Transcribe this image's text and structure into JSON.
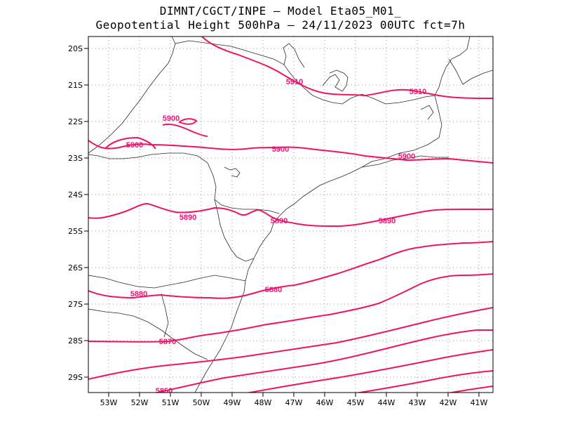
{
  "header": {
    "line1": "DIMNT/CGCT/INPE –  Model Eta05_M01_",
    "line2": "Geopotential Height 500hPa –  24/11/2023 00UTC fct=7h"
  },
  "map": {
    "lon_labels": [
      "53W",
      "52W",
      "51W",
      "50W",
      "49W",
      "48W",
      "47W",
      "46W",
      "45W",
      "44W",
      "43W",
      "42W",
      "41W"
    ],
    "lat_labels": [
      "20S",
      "21S",
      "22S",
      "23S",
      "24S",
      "25S",
      "26S",
      "27S",
      "28S",
      "29S"
    ],
    "contour_color": "#f0145a",
    "label_color": "#ff0a78",
    "contour_labels": [
      "5910",
      "5910",
      "5900",
      "5900",
      "5900",
      "5900",
      "5890",
      "5890",
      "5890",
      "5880",
      "5880",
      "5870",
      "5850"
    ]
  }
}
